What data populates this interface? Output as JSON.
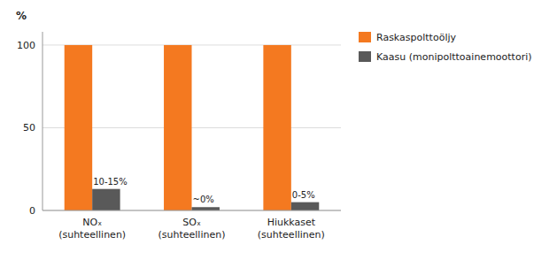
{
  "chart_data": {
    "type": "bar",
    "ylabel": "%",
    "categories": [
      "NOₓ\n(suhteellinen)",
      "SOₓ\n(suhteellinen)",
      "Hiukkaset\n(suhteellinen)"
    ],
    "series": [
      {
        "name": "Raskaspolttoöljy",
        "color": "#F47920",
        "values": [
          100,
          100,
          100
        ]
      },
      {
        "name": "Kaasu (monipolttoainemoottori)",
        "color": "#595959",
        "values": [
          13,
          2,
          5
        ],
        "value_labels": [
          "10-15%",
          "~0%",
          "0-5%"
        ],
        "data_labels": true
      }
    ],
    "ylim": [
      0,
      108
    ],
    "yticks": [
      0,
      50,
      100
    ],
    "grid": true,
    "legend": "right"
  }
}
